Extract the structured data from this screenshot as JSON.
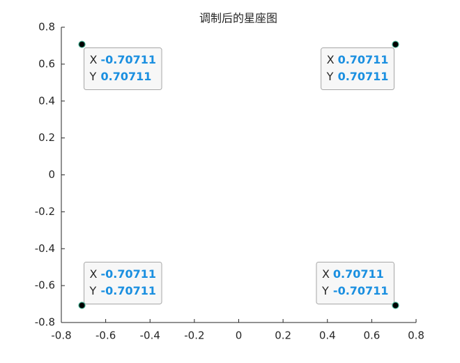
{
  "chart_data": {
    "type": "scatter",
    "title": "调制后的星座图",
    "x": [
      -0.70711,
      0.70711,
      -0.70711,
      0.70711
    ],
    "values": [
      0.70711,
      0.70711,
      -0.70711,
      -0.70711
    ],
    "color": "#000000",
    "datatip_labels": [
      "X",
      "Y"
    ],
    "xlim": [
      -0.8,
      0.8
    ],
    "ylim": [
      -0.8,
      0.8
    ],
    "xticks": [
      -0.8,
      -0.6,
      -0.4,
      -0.2,
      0,
      0.2,
      0.4,
      0.6,
      0.8
    ],
    "yticks": [
      -0.8,
      -0.6,
      -0.4,
      -0.2,
      0,
      0.2,
      0.4,
      0.6,
      0.8
    ]
  }
}
